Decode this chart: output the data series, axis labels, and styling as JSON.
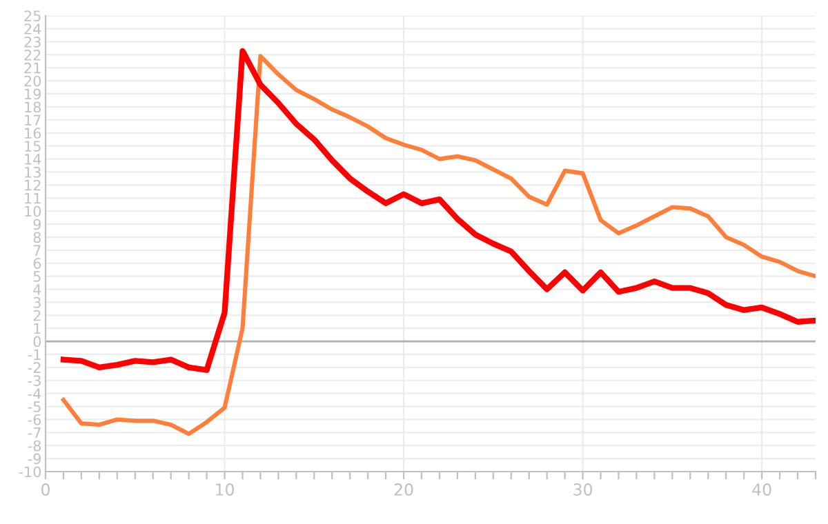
{
  "chart_data": {
    "type": "line",
    "x": [
      1,
      2,
      3,
      4,
      5,
      6,
      7,
      8,
      9,
      10,
      11,
      12,
      13,
      14,
      15,
      16,
      17,
      18,
      19,
      20,
      21,
      22,
      23,
      24,
      25,
      26,
      27,
      28,
      29,
      30,
      31,
      32,
      33,
      34,
      35,
      36,
      37,
      38,
      39,
      40,
      41,
      42,
      43
    ],
    "series": [
      {
        "color": "#ff0000",
        "values": [
          -1.4,
          -1.5,
          -2.0,
          -1.8,
          -1.5,
          -1.6,
          -1.4,
          -2.0,
          -2.2,
          2.2,
          22.3,
          19.7,
          18.3,
          16.7,
          15.5,
          13.9,
          12.5,
          11.5,
          10.6,
          11.3,
          10.6,
          10.9,
          9.4,
          8.2,
          7.5,
          6.9,
          5.4,
          4.0,
          5.3,
          3.9,
          5.3,
          3.8,
          4.1,
          4.6,
          4.1,
          4.1,
          3.7,
          2.8,
          2.4,
          2.6,
          2.1,
          1.5,
          1.6
        ]
      },
      {
        "color": "#ff7f3a",
        "values": [
          -4.5,
          -6.3,
          -6.4,
          -6.0,
          -6.1,
          -6.1,
          -6.4,
          -7.1,
          -6.2,
          -5.1,
          1.0,
          21.9,
          20.5,
          19.3,
          18.6,
          17.8,
          17.2,
          16.5,
          15.6,
          15.1,
          14.7,
          14.0,
          14.2,
          13.9,
          13.2,
          12.5,
          11.1,
          10.5,
          13.1,
          12.9,
          9.3,
          8.3,
          8.9,
          9.6,
          10.3,
          10.2,
          9.6,
          8.0,
          7.4,
          6.5,
          6.1,
          5.4,
          5.0
        ]
      }
    ],
    "xlim": [
      0,
      43
    ],
    "xticks": [
      0,
      {
        "value": 1,
        "label": null
      },
      {
        "value": 2,
        "label": null
      },
      {
        "value": 3,
        "label": null
      },
      {
        "value": 4,
        "label": null
      },
      {
        "value": 5,
        "label": null
      },
      {
        "value": 6,
        "label": null
      },
      {
        "value": 7,
        "label": null
      },
      {
        "value": 8,
        "label": null
      },
      {
        "value": 9,
        "label": null
      },
      10,
      {
        "value": 11,
        "label": null
      },
      {
        "value": 12,
        "label": null
      },
      {
        "value": 13,
        "label": null
      },
      {
        "value": 14,
        "label": null
      },
      {
        "value": 15,
        "label": null
      },
      {
        "value": 16,
        "label": null
      },
      {
        "value": 17,
        "label": null
      },
      {
        "value": 18,
        "label": null
      },
      {
        "value": 19,
        "label": null
      },
      20,
      {
        "value": 21,
        "label": null
      },
      {
        "value": 22,
        "label": null
      },
      {
        "value": 23,
        "label": null
      },
      {
        "value": 24,
        "label": null
      },
      {
        "value": 25,
        "label": null
      },
      {
        "value": 26,
        "label": null
      },
      {
        "value": 27,
        "label": null
      },
      {
        "value": 28,
        "label": null
      },
      {
        "value": 29,
        "label": null
      },
      30,
      {
        "value": 31,
        "label": null
      },
      {
        "value": 32,
        "label": null
      },
      {
        "value": 33,
        "label": null
      },
      {
        "value": 34,
        "label": null
      },
      {
        "value": 35,
        "label": null
      },
      {
        "value": 36,
        "label": null
      },
      {
        "value": 37,
        "label": null
      },
      {
        "value": 38,
        "label": null
      },
      {
        "value": 39,
        "label": null
      },
      40,
      {
        "value": 41,
        "label": null
      },
      {
        "value": 42,
        "label": null
      },
      {
        "value": 43,
        "label": null
      }
    ],
    "ylim": [
      -10,
      25
    ],
    "yticks": [
      -10,
      -9,
      -8,
      -7,
      -6,
      -5,
      -4,
      -3,
      -2,
      -1,
      0,
      1,
      2,
      3,
      4,
      5,
      6,
      7,
      8,
      9,
      10,
      11,
      12,
      13,
      14,
      15,
      16,
      17,
      18,
      19,
      20,
      21,
      22,
      23,
      24,
      25
    ],
    "ref_lines": [
      {
        "axis": "y",
        "value": 0,
        "color": "#b0b0b0"
      }
    ],
    "grid": true,
    "marker": "none",
    "line_style": "solid"
  }
}
